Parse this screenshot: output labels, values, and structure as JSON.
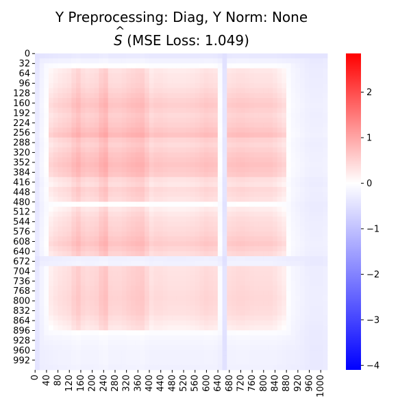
{
  "title": {
    "line1": "Y Preprocessing: Diag, Y Norm: None",
    "line2_symbol_base": "S",
    "line2_symbol_hat": "^",
    "line2_rest": " (MSE Loss: 1.049)"
  },
  "chart_data": {
    "type": "heatmap",
    "title": "Y Preprocessing: Diag, Y Norm: None\nŜ (MSE Loss: 1.049)",
    "matrix_size": 1024,
    "x_ticks": [
      0,
      40,
      80,
      120,
      160,
      200,
      240,
      280,
      320,
      360,
      400,
      440,
      480,
      520,
      560,
      600,
      640,
      680,
      720,
      760,
      800,
      840,
      880,
      920,
      960,
      1000
    ],
    "y_ticks": [
      0,
      32,
      64,
      96,
      128,
      160,
      192,
      224,
      256,
      288,
      320,
      352,
      384,
      416,
      448,
      480,
      512,
      544,
      576,
      608,
      640,
      672,
      704,
      736,
      768,
      800,
      832,
      864,
      896,
      928,
      960,
      992
    ],
    "colorbar": {
      "colormap": "bwr",
      "vmin": -4.1,
      "vmax": 2.85,
      "center": 0,
      "ticks": [
        "2",
        "1",
        "0",
        "−1",
        "−2",
        "−3",
        "−4"
      ],
      "tick_values": [
        2,
        1,
        0,
        -1,
        -2,
        -3,
        -4
      ]
    },
    "row_profile": {
      "description_values_at_positions": [
        [
          0,
          -0.6
        ],
        [
          24,
          -0.3
        ],
        [
          60,
          0.2
        ],
        [
          96,
          0.25
        ],
        [
          140,
          0.55
        ],
        [
          165,
          0.75
        ],
        [
          200,
          0.5
        ],
        [
          240,
          0.7
        ],
        [
          262,
          1.0
        ],
        [
          288,
          0.4
        ],
        [
          330,
          0.75
        ],
        [
          360,
          0.9
        ],
        [
          395,
          0.7
        ],
        [
          416,
          0.1
        ],
        [
          440,
          0.45
        ],
        [
          470,
          0.3
        ],
        [
          490,
          -0.1
        ],
        [
          530,
          0.3
        ],
        [
          580,
          0.5
        ],
        [
          615,
          0.75
        ],
        [
          650,
          0.4
        ],
        [
          672,
          -0.8
        ],
        [
          690,
          0.3
        ],
        [
          740,
          0.35
        ],
        [
          790,
          0.45
        ],
        [
          840,
          0.35
        ],
        [
          880,
          0.05
        ],
        [
          920,
          -0.2
        ],
        [
          960,
          -0.3
        ],
        [
          1000,
          -0.3
        ],
        [
          1023,
          -0.35
        ]
      ]
    },
    "col_profile": {
      "description_values_at_positions": [
        [
          0,
          -0.6
        ],
        [
          30,
          -0.2
        ],
        [
          80,
          0.2
        ],
        [
          120,
          0.35
        ],
        [
          150,
          0.75
        ],
        [
          175,
          0.4
        ],
        [
          215,
          0.5
        ],
        [
          245,
          0.95
        ],
        [
          265,
          0.45
        ],
        [
          300,
          0.45
        ],
        [
          330,
          0.6
        ],
        [
          360,
          0.7
        ],
        [
          385,
          0.75
        ],
        [
          400,
          0.2
        ],
        [
          430,
          0.35
        ],
        [
          470,
          0.25
        ],
        [
          520,
          0.25
        ],
        [
          560,
          0.3
        ],
        [
          600,
          0.45
        ],
        [
          640,
          0.35
        ],
        [
          660,
          -0.8
        ],
        [
          680,
          0.35
        ],
        [
          720,
          0.45
        ],
        [
          770,
          0.35
        ],
        [
          830,
          0.35
        ],
        [
          870,
          0.05
        ],
        [
          900,
          -0.2
        ],
        [
          960,
          -0.4
        ],
        [
          1000,
          -0.4
        ],
        [
          1023,
          -0.35
        ]
      ]
    }
  }
}
